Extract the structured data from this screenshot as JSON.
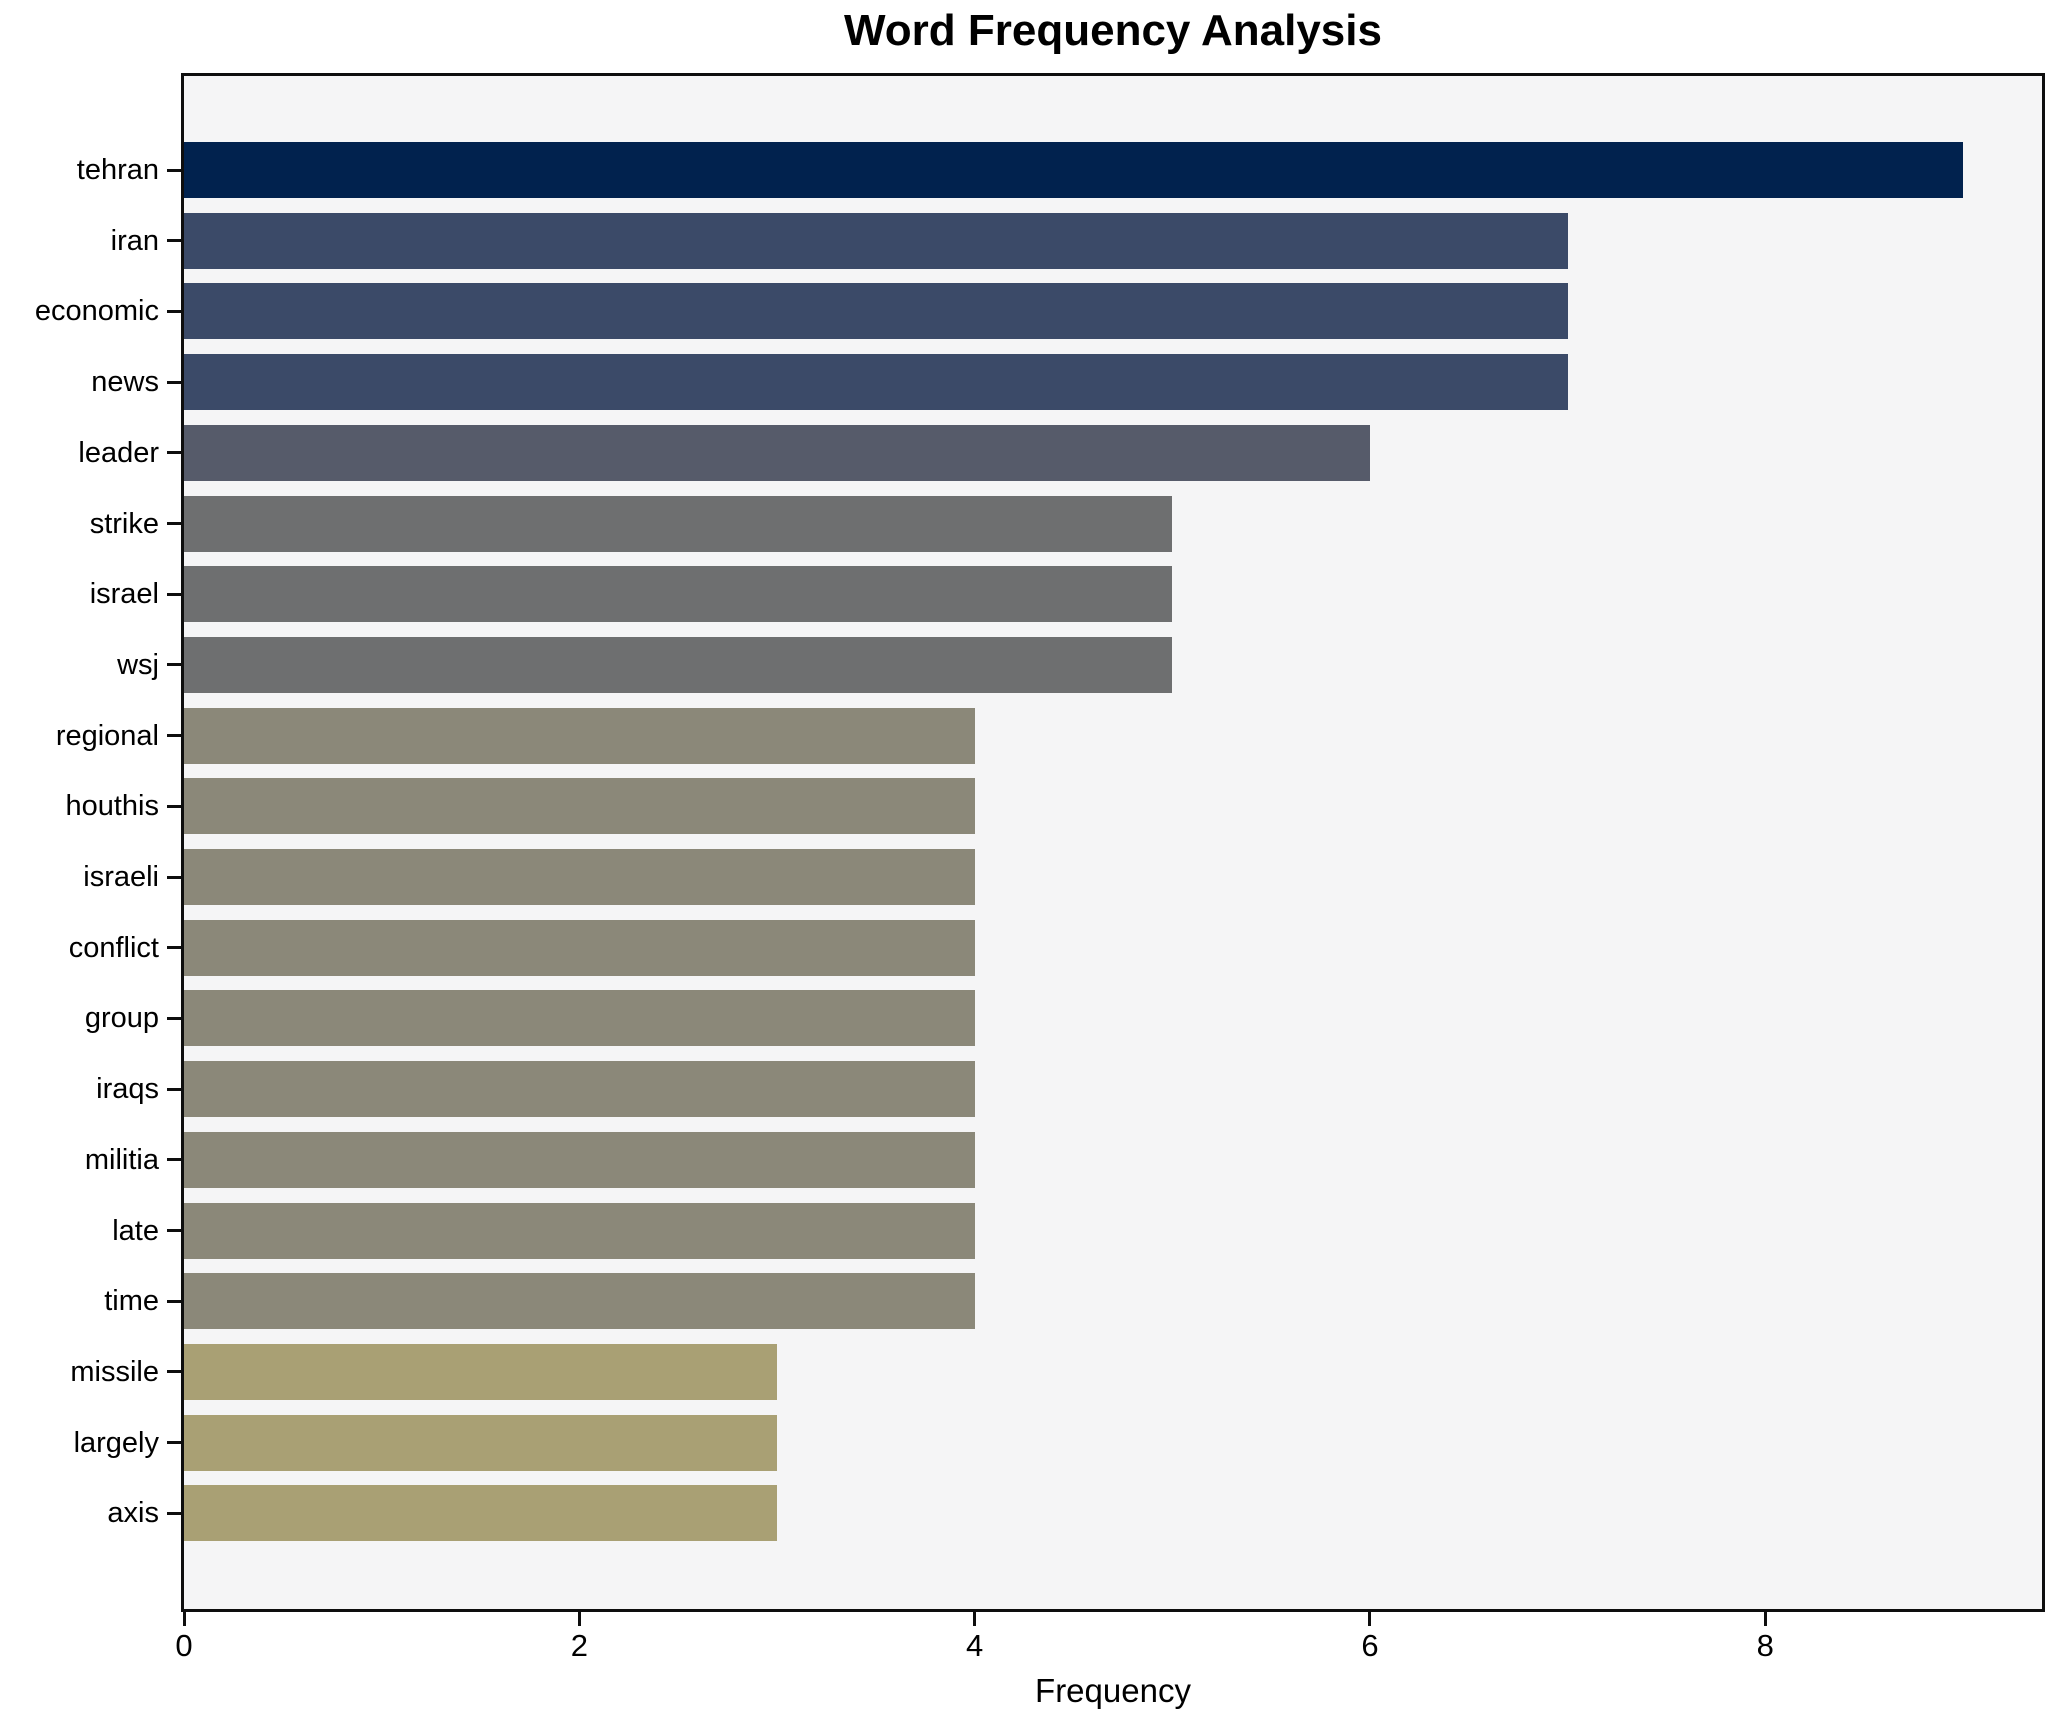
{
  "chart_data": {
    "type": "bar",
    "orientation": "horizontal",
    "title": "Word Frequency Analysis",
    "xlabel": "Frequency",
    "ylabel": "",
    "categories": [
      "tehran",
      "iran",
      "economic",
      "news",
      "leader",
      "strike",
      "israel",
      "wsj",
      "regional",
      "houthis",
      "israeli",
      "conflict",
      "group",
      "iraqs",
      "militia",
      "late",
      "time",
      "missile",
      "largely",
      "axis"
    ],
    "values": [
      9,
      7,
      7,
      7,
      6,
      5,
      5,
      5,
      4,
      4,
      4,
      4,
      4,
      4,
      4,
      4,
      4,
      3,
      3,
      3
    ],
    "bar_colors": [
      "#01224e",
      "#3b4a68",
      "#3b4a68",
      "#3b4a68",
      "#565b6a",
      "#6e6f70",
      "#6e6f70",
      "#6e6f70",
      "#8b8879",
      "#8b8879",
      "#8b8879",
      "#8b8879",
      "#8b8879",
      "#8b8879",
      "#8b8879",
      "#8b8879",
      "#8b8879",
      "#a9a074",
      "#a9a074",
      "#a9a074"
    ],
    "xticks": [
      0,
      2,
      4,
      6,
      8
    ],
    "xlim": [
      0,
      9.4
    ],
    "grid": false,
    "legend": null,
    "plot_background": "#f5f5f6",
    "figure_background": "#ffffff",
    "spine_color": "#0e0e0e"
  }
}
